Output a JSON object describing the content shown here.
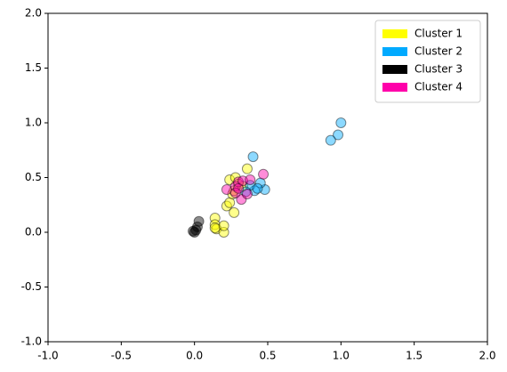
{
  "chart_data": {
    "type": "scatter",
    "xlim": [
      -1,
      2
    ],
    "ylim": [
      -1,
      2
    ],
    "xticks": [
      {
        "value": -1,
        "label": "-1.0"
      },
      {
        "value": -0.5,
        "label": "-0.5"
      },
      {
        "value": 0,
        "label": "0.0"
      },
      {
        "value": 0.5,
        "label": "0.5"
      },
      {
        "value": 1,
        "label": "1.0"
      },
      {
        "value": 1.5,
        "label": "1.5"
      },
      {
        "value": 2,
        "label": "2.0"
      }
    ],
    "yticks": [
      {
        "value": -1,
        "label": "-1.0"
      },
      {
        "value": -0.5,
        "label": "-0.5"
      },
      {
        "value": 0,
        "label": "0.0"
      },
      {
        "value": 0.5,
        "label": "0.5"
      },
      {
        "value": 1,
        "label": "1.0"
      },
      {
        "value": 1.5,
        "label": "1.5"
      },
      {
        "value": 2,
        "label": "2.0"
      }
    ],
    "legend": "upper right",
    "series": [
      {
        "name": "Cluster 1",
        "color": "#ffff00",
        "x": [
          0.14,
          0.14,
          0.15,
          0.14,
          0.2,
          0.2,
          0.22,
          0.24,
          0.27,
          0.26,
          0.27,
          0.24,
          0.28,
          0.36,
          0.3,
          0.33
        ],
        "values": [
          0.13,
          0.07,
          0.03,
          0.04,
          0.0,
          0.06,
          0.24,
          0.27,
          0.18,
          0.35,
          0.38,
          0.48,
          0.5,
          0.58,
          0.44,
          0.42
        ]
      },
      {
        "name": "Cluster 2",
        "color": "#00aaff",
        "x": [
          1.0,
          0.98,
          0.93,
          0.4,
          0.48,
          0.45,
          0.41,
          0.38,
          0.43,
          0.35
        ],
        "values": [
          1.0,
          0.89,
          0.84,
          0.69,
          0.39,
          0.45,
          0.38,
          0.43,
          0.4,
          0.37
        ]
      },
      {
        "name": "Cluster 3",
        "color": "#000000",
        "x": [
          0.0,
          0.01,
          0.02,
          0.03,
          -0.01
        ],
        "values": [
          0.0,
          0.02,
          0.05,
          0.1,
          0.01
        ]
      },
      {
        "name": "Cluster 4",
        "color": "#ff00aa",
        "x": [
          0.22,
          0.28,
          0.3,
          0.33,
          0.32,
          0.36,
          0.38,
          0.47,
          0.28,
          0.3
        ],
        "values": [
          0.39,
          0.42,
          0.46,
          0.47,
          0.3,
          0.35,
          0.48,
          0.53,
          0.36,
          0.4
        ]
      }
    ]
  }
}
